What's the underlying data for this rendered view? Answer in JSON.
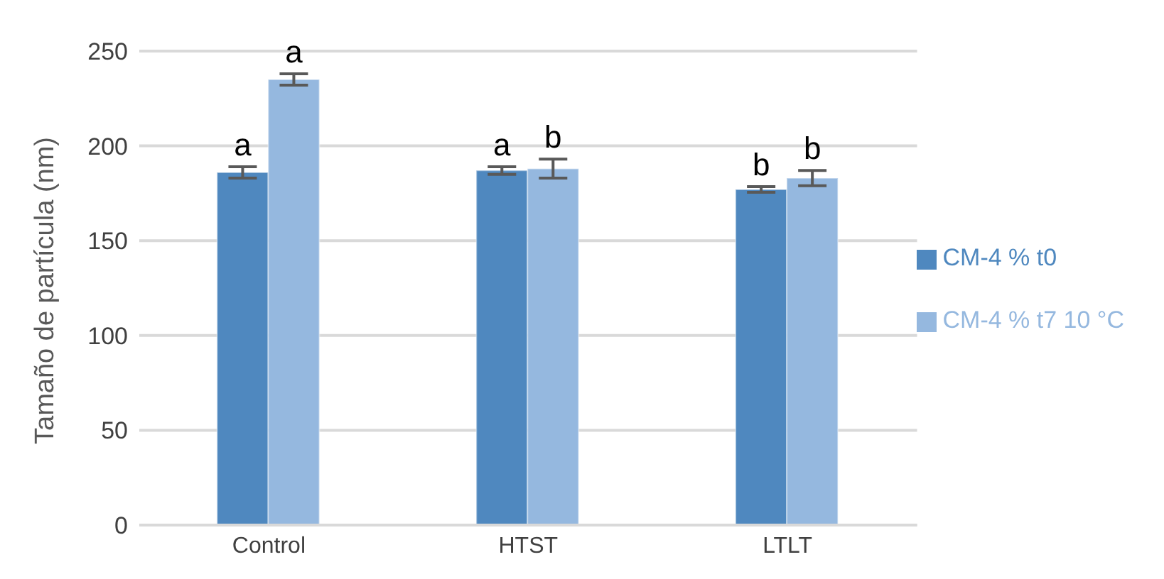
{
  "chart_data": {
    "type": "bar",
    "ylabel": "Tamaño de partícula (nm)",
    "categories": [
      "Control",
      "HTST",
      "LTLT"
    ],
    "series": [
      {
        "name": "CM-4 % t0",
        "color": "#4f88bf",
        "values": [
          186,
          187,
          177
        ],
        "errors": [
          3,
          2,
          1.5
        ],
        "value_labels": [
          "a",
          "a",
          "b"
        ]
      },
      {
        "name": "CM-4 % t7 10 °C",
        "color": "#95b8df",
        "values": [
          235,
          188,
          183
        ],
        "errors": [
          3,
          5,
          4
        ],
        "value_labels": [
          "a",
          "b",
          "b"
        ]
      }
    ],
    "ylim": [
      0,
      250
    ],
    "yticks": [
      0,
      50,
      100,
      150,
      200,
      250
    ],
    "grid": "y",
    "legend": "right"
  }
}
